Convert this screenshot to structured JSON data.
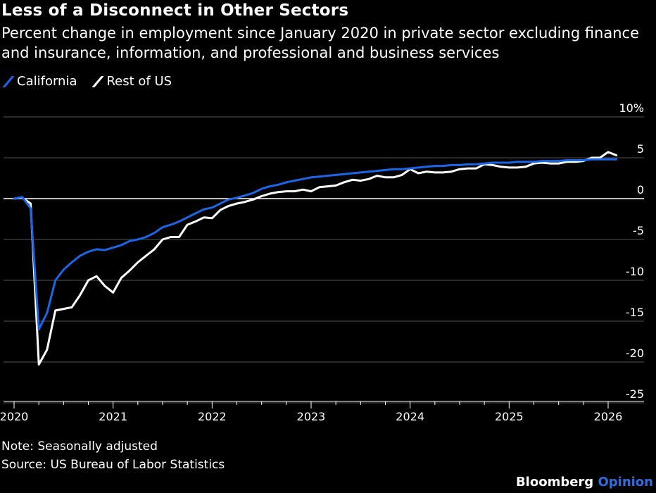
{
  "title": "Less of a Disconnect in Other Sectors",
  "subtitle": "Percent change in employment since January 2020 in private sector excluding finance and insurance, information, and professional and business services",
  "note": "Note: Seasonally adjusted",
  "source": "Source: US Bureau of Labor Statistics",
  "brand": {
    "main": "Bloomberg",
    "accent": "Opinion"
  },
  "chart_data": {
    "type": "line",
    "title": "Less of a Disconnect in Other Sectors",
    "subtitle": "Percent change in employment since January 2020 in private sector excluding finance and insurance, information, and professional and business services",
    "xlabel": "",
    "ylabel": "",
    "xlim": [
      2019.958,
      2026.125
    ],
    "ylim": [
      -27,
      11
    ],
    "yticks": [
      10,
      5,
      0,
      -5,
      -10,
      -15,
      -20,
      -25
    ],
    "ytick_labels": [
      "10%",
      "5",
      "0",
      "-5",
      "-10",
      "-15",
      "-20",
      "-25"
    ],
    "xticks": [
      2020,
      2021,
      2022,
      2023,
      2024,
      2025,
      2026
    ],
    "xtick_labels": [
      "2020",
      "2021",
      "2022",
      "2023",
      "2024",
      "2025",
      "2026"
    ],
    "grid": true,
    "legend_position": "top-left",
    "series": [
      {
        "name": "California",
        "color": "#1a66e8",
        "x": [
          2020.0,
          2020.083,
          2020.167,
          2020.25,
          2020.333,
          2020.417,
          2020.5,
          2020.583,
          2020.667,
          2020.75,
          2020.833,
          2020.917,
          2021.0,
          2021.083,
          2021.167,
          2021.25,
          2021.333,
          2021.417,
          2021.5,
          2021.583,
          2021.667,
          2021.75,
          2021.833,
          2021.917,
          2022.0,
          2022.083,
          2022.167,
          2022.25,
          2022.333,
          2022.417,
          2022.5,
          2022.583,
          2022.667,
          2022.75,
          2022.833,
          2022.917,
          2023.0,
          2023.083,
          2023.167,
          2023.25,
          2023.333,
          2023.417,
          2023.5,
          2023.583,
          2023.667,
          2023.75,
          2023.833,
          2023.917,
          2024.0,
          2024.083,
          2024.167,
          2024.25,
          2024.333,
          2024.417,
          2024.5,
          2024.583,
          2024.667,
          2024.75,
          2024.833,
          2024.917,
          2025.0,
          2025.083,
          2025.167,
          2025.25,
          2025.333,
          2025.417,
          2025.5,
          2025.583,
          2025.667,
          2025.75,
          2025.833,
          2025.917,
          2026.0,
          2026.083
        ],
        "values": [
          0.0,
          0.2,
          -1.2,
          -16.0,
          -14.0,
          -10.0,
          -8.7,
          -7.8,
          -7.0,
          -6.5,
          -6.2,
          -6.3,
          -6.0,
          -5.7,
          -5.2,
          -5.0,
          -4.7,
          -4.2,
          -3.5,
          -3.2,
          -2.8,
          -2.3,
          -1.8,
          -1.3,
          -1.1,
          -0.6,
          -0.1,
          0.1,
          0.4,
          0.7,
          1.2,
          1.5,
          1.7,
          2.0,
          2.2,
          2.4,
          2.6,
          2.7,
          2.8,
          2.9,
          3.0,
          3.1,
          3.2,
          3.3,
          3.4,
          3.5,
          3.6,
          3.6,
          3.7,
          3.8,
          3.9,
          4.0,
          4.0,
          4.1,
          4.1,
          4.2,
          4.2,
          4.3,
          4.4,
          4.4,
          4.4,
          4.5,
          4.5,
          4.5,
          4.6,
          4.6,
          4.6,
          4.7,
          4.7,
          4.7,
          4.8,
          4.8,
          4.8,
          4.8
        ]
      },
      {
        "name": "Rest of US",
        "color": "#ffffff",
        "x": [
          2020.0,
          2020.083,
          2020.167,
          2020.25,
          2020.333,
          2020.417,
          2020.5,
          2020.583,
          2020.667,
          2020.75,
          2020.833,
          2020.917,
          2021.0,
          2021.083,
          2021.167,
          2021.25,
          2021.333,
          2021.417,
          2021.5,
          2021.583,
          2021.667,
          2021.75,
          2021.833,
          2021.917,
          2022.0,
          2022.083,
          2022.167,
          2022.25,
          2022.333,
          2022.417,
          2022.5,
          2022.583,
          2022.667,
          2022.75,
          2022.833,
          2022.917,
          2023.0,
          2023.083,
          2023.167,
          2023.25,
          2023.333,
          2023.417,
          2023.5,
          2023.583,
          2023.667,
          2023.75,
          2023.833,
          2023.917,
          2024.0,
          2024.083,
          2024.167,
          2024.25,
          2024.333,
          2024.417,
          2024.5,
          2024.583,
          2024.667,
          2024.75,
          2024.833,
          2024.917,
          2025.0,
          2025.083,
          2025.167,
          2025.25,
          2025.333,
          2025.417,
          2025.5,
          2025.583,
          2025.667,
          2025.75,
          2025.833,
          2025.917,
          2026.0,
          2026.083
        ],
        "values": [
          0.0,
          0.1,
          -0.6,
          -20.3,
          -18.5,
          -13.7,
          -13.5,
          -13.3,
          -11.8,
          -10.0,
          -9.5,
          -10.7,
          -11.5,
          -9.7,
          -8.8,
          -7.8,
          -7.0,
          -6.2,
          -5.0,
          -4.7,
          -4.7,
          -3.2,
          -2.8,
          -2.3,
          -2.4,
          -1.4,
          -0.9,
          -0.6,
          -0.4,
          -0.1,
          0.3,
          0.6,
          0.8,
          0.9,
          0.9,
          1.1,
          0.9,
          1.4,
          1.5,
          1.6,
          2.0,
          2.3,
          2.2,
          2.4,
          2.8,
          2.6,
          2.6,
          2.9,
          3.6,
          3.1,
          3.3,
          3.2,
          3.2,
          3.3,
          3.6,
          3.7,
          3.7,
          4.2,
          4.1,
          3.9,
          3.8,
          3.8,
          3.9,
          4.3,
          4.4,
          4.3,
          4.3,
          4.5,
          4.5,
          4.6,
          5.0,
          5.0,
          5.7,
          5.3
        ]
      }
    ]
  }
}
